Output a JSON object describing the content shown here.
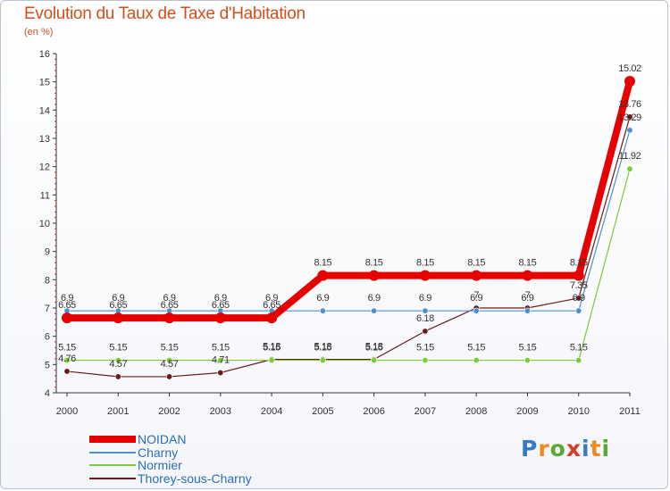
{
  "title": "Evolution du Taux de Taxe d'Habitation",
  "subtitle": "(en %)",
  "logo": {
    "letters": [
      "P",
      "r",
      "o",
      "x",
      "i",
      "t",
      "i"
    ],
    "colors": [
      "#3a78c9",
      "#f08a1d",
      "#5aa832",
      "#d93b2b",
      "#3a78c9",
      "#f08a1d",
      "#5aa832"
    ]
  },
  "chart_data": {
    "type": "line",
    "title": "Evolution du Taux de Taxe d'Habitation",
    "ylabel": "(en %)",
    "xlabel": "",
    "x": [
      "2000",
      "2001",
      "2002",
      "2003",
      "2004",
      "2005",
      "2006",
      "2007",
      "2008",
      "2009",
      "2010",
      "2011"
    ],
    "ylim": [
      4,
      16
    ],
    "yticks": [
      4,
      5,
      6,
      7,
      8,
      9,
      10,
      11,
      12,
      13,
      14,
      15,
      16
    ],
    "grid": false,
    "legend": "bottom-left",
    "series": [
      {
        "name": "NOIDAN",
        "color": "#e60000",
        "values": [
          6.65,
          6.65,
          6.65,
          6.65,
          6.65,
          8.15,
          8.15,
          8.15,
          8.15,
          8.15,
          8.15,
          15.02
        ],
        "labels": [
          "6.65",
          "6.65",
          "6.65",
          "6.65",
          "6.65",
          "8.15",
          "8.15",
          "8.15",
          "8.15",
          "8.15",
          "8.15",
          "15.02"
        ]
      },
      {
        "name": "Charny",
        "color": "#4f90cc",
        "values": [
          6.9,
          6.9,
          6.9,
          6.9,
          6.9,
          6.9,
          6.9,
          6.9,
          6.9,
          6.9,
          6.9,
          13.29
        ],
        "labels": [
          "6.9",
          "6.9",
          "6.9",
          "6.9",
          "6.9",
          "6.9",
          "6.9",
          "6.9",
          "6.9",
          "6.9",
          "6.9",
          "13.29"
        ]
      },
      {
        "name": "Normier",
        "color": "#7ccb3b",
        "values": [
          5.15,
          5.15,
          5.15,
          5.15,
          5.15,
          5.15,
          5.15,
          5.15,
          5.15,
          5.15,
          5.15,
          11.92
        ],
        "labels": [
          "5.15",
          "5.15",
          "5.15",
          "5.15",
          "5.15",
          "5.15",
          "5.15",
          "5.15",
          "5.15",
          "5.15",
          "5.15",
          "11.92"
        ]
      },
      {
        "name": "Thorey-sous-Charny",
        "color": "#6b1a1a",
        "values": [
          4.76,
          4.57,
          4.57,
          4.71,
          5.18,
          5.18,
          5.18,
          6.18,
          7,
          7,
          7.35,
          13.76
        ],
        "labels": [
          "4.76",
          "4.57",
          "4.57",
          "4.71",
          "5.18",
          "5.18",
          "5.18",
          "6.18",
          "7",
          "7",
          "7.35",
          "13.76"
        ]
      }
    ]
  }
}
